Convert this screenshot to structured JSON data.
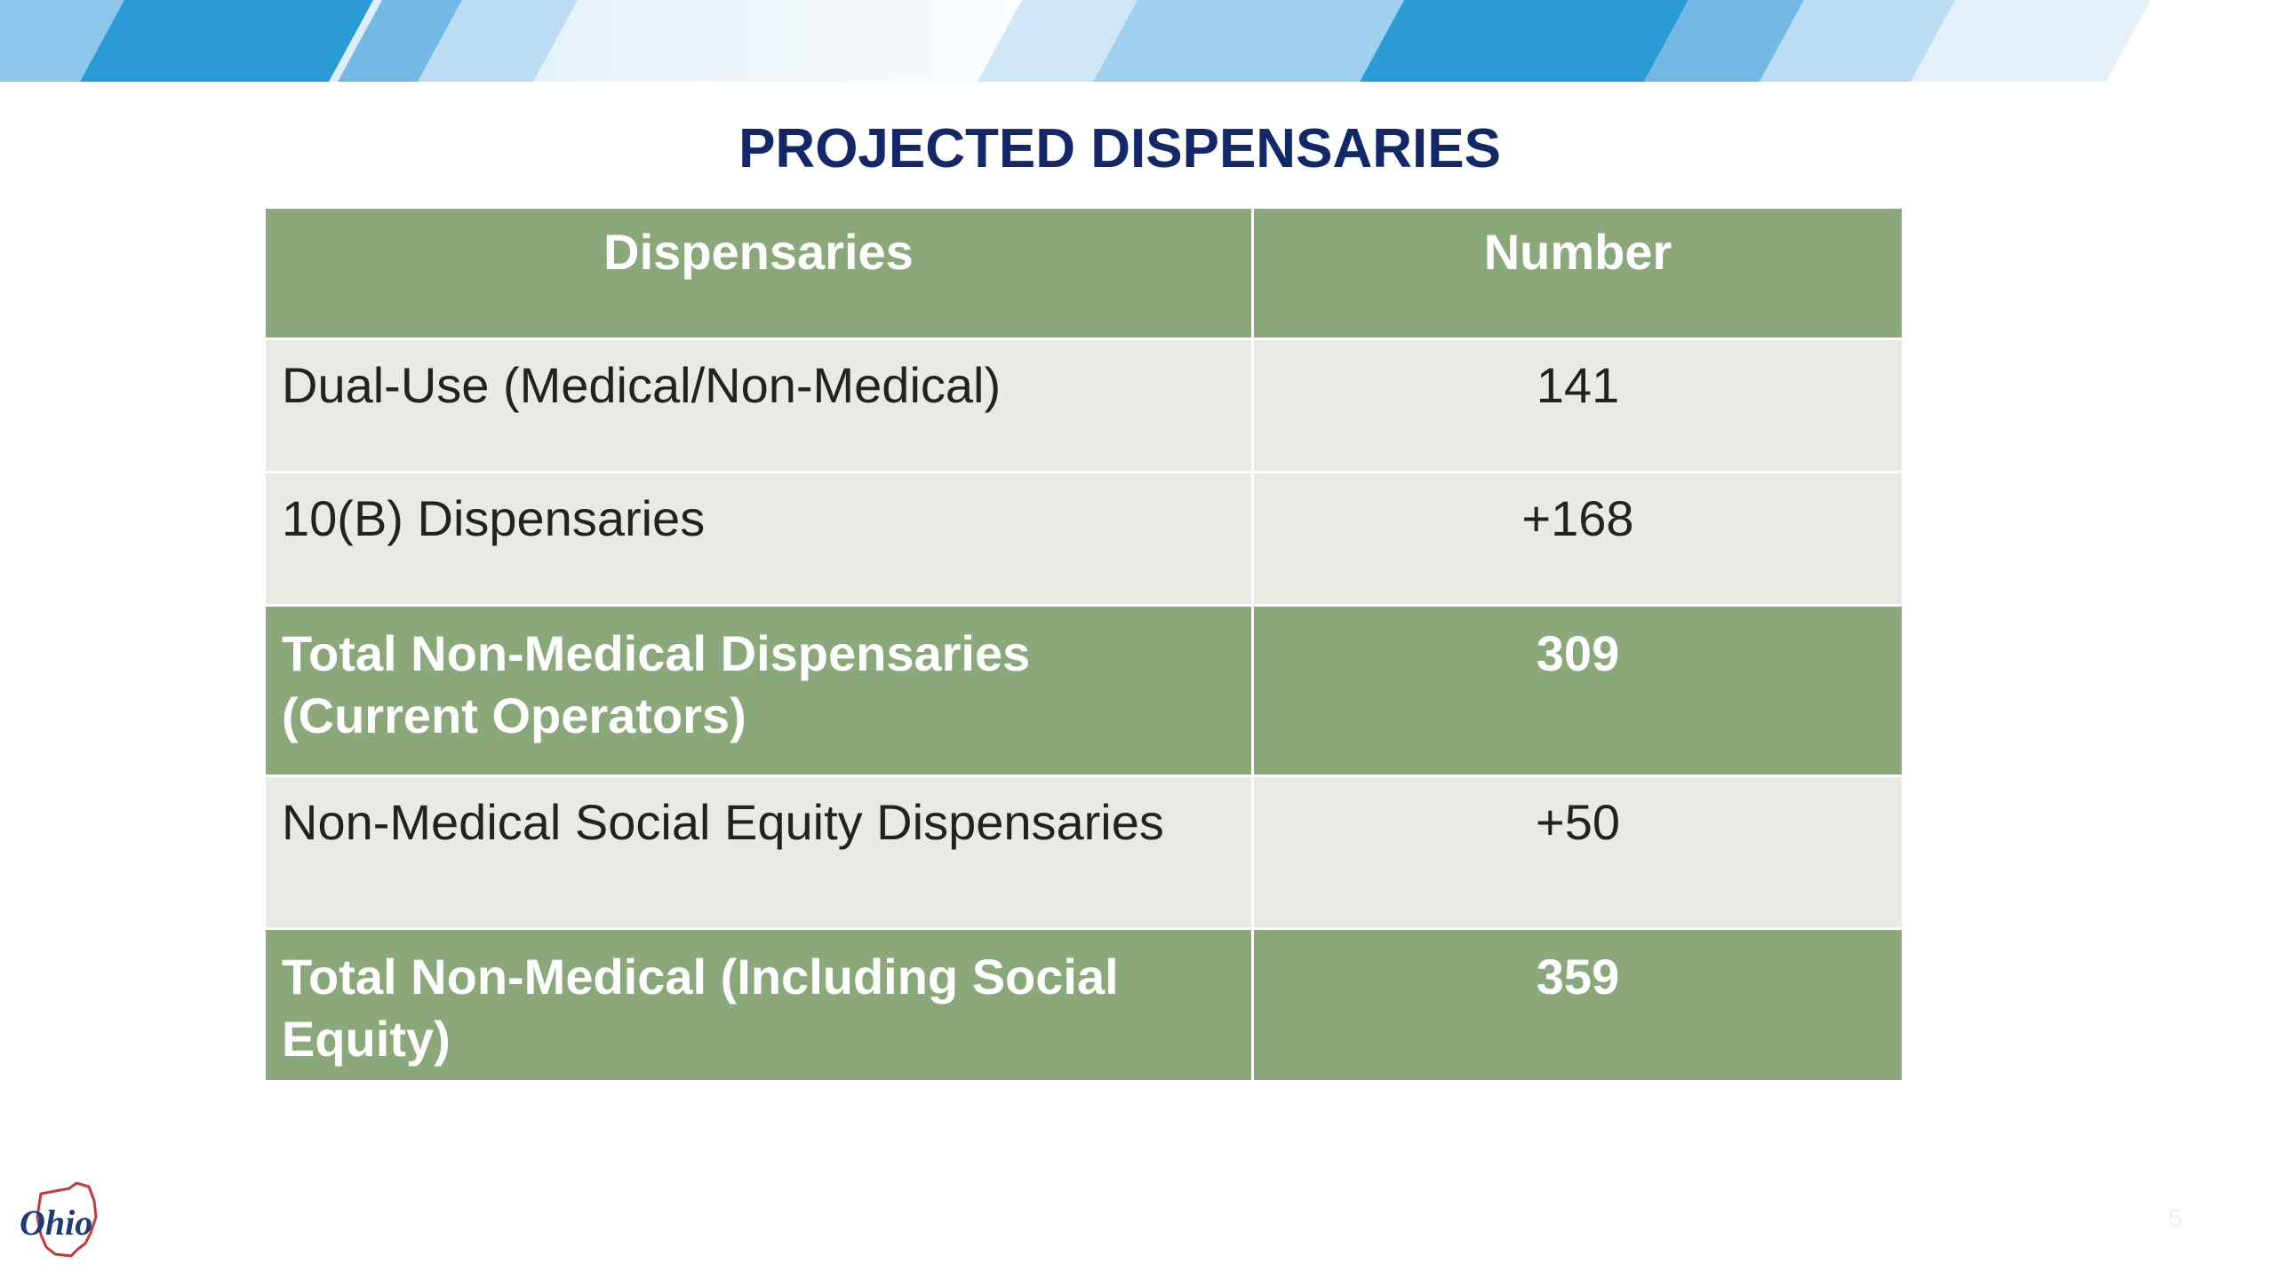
{
  "slide": {
    "title": "PROJECTED DISPENSARIES",
    "page_number": "5",
    "logo_text": "Ohio"
  },
  "table": {
    "headers": [
      "Dispensaries",
      "Number"
    ],
    "rows": [
      {
        "label": "Dual-Use (Medical/Non-Medical)",
        "value": "141",
        "style": "plain"
      },
      {
        "label": "10(B) Dispensaries",
        "value": "+168",
        "style": "plain"
      },
      {
        "label_line1": "Total Non-Medical Dispensaries",
        "label_line2": "(Current Operators)",
        "value": "309",
        "style": "total"
      },
      {
        "label": "Non-Medical Social Equity Dispensaries",
        "value": "+50",
        "style": "plain"
      },
      {
        "label_line1": "Total Non-Medical (Including Social",
        "label_line2": "Equity)",
        "value": "359",
        "style": "total"
      }
    ]
  },
  "colors": {
    "title": "#13276b",
    "header_fill": "#8aa87a",
    "row_fill": "#e8eae3",
    "banner_blue": "#2b9bd6",
    "banner_light": "#a9d4f0"
  },
  "icons": [
    "ohio-logo-icon"
  ]
}
